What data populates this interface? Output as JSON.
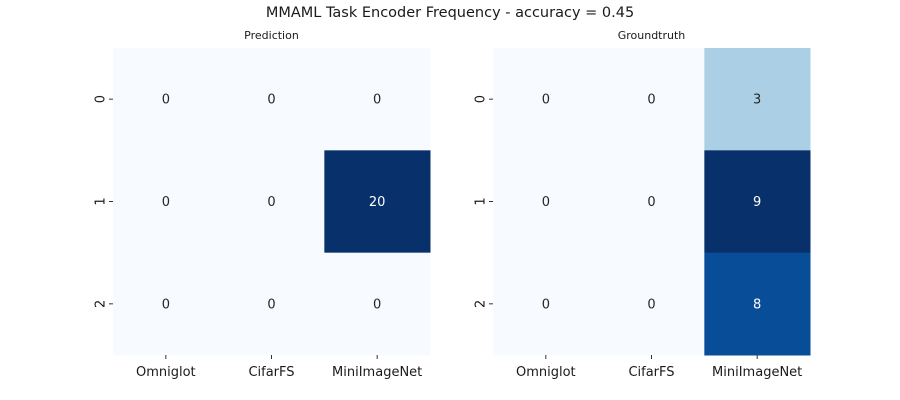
{
  "figure_title": "MMAML Task Encoder Frequency - accuracy = 0.45",
  "chart_data": [
    {
      "type": "heatmap",
      "title": "Prediction",
      "x_tick_labels": [
        "Omniglot",
        "CifarFS",
        "MiniImageNet"
      ],
      "y_tick_labels": [
        "0",
        "1",
        "2"
      ],
      "values": [
        [
          0,
          0,
          0
        ],
        [
          0,
          0,
          20
        ],
        [
          0,
          0,
          0
        ]
      ],
      "colormap": "Blues",
      "colorbar": false,
      "annotations": true,
      "value_range": [
        0,
        20
      ]
    },
    {
      "type": "heatmap",
      "title": "Groundtruth",
      "x_tick_labels": [
        "Omniglot",
        "CifarFS",
        "MiniImageNet"
      ],
      "y_tick_labels": [
        "0",
        "1",
        "2"
      ],
      "values": [
        [
          0,
          0,
          3
        ],
        [
          0,
          0,
          9
        ],
        [
          0,
          0,
          8
        ]
      ],
      "colormap": "Blues",
      "colorbar": false,
      "annotations": true,
      "value_range": [
        0,
        9
      ]
    }
  ],
  "colors": {
    "blues_min": "#f7fbff",
    "blues_max": "#08306b",
    "text_dark": "#262626",
    "text_light": "#ffffff"
  }
}
